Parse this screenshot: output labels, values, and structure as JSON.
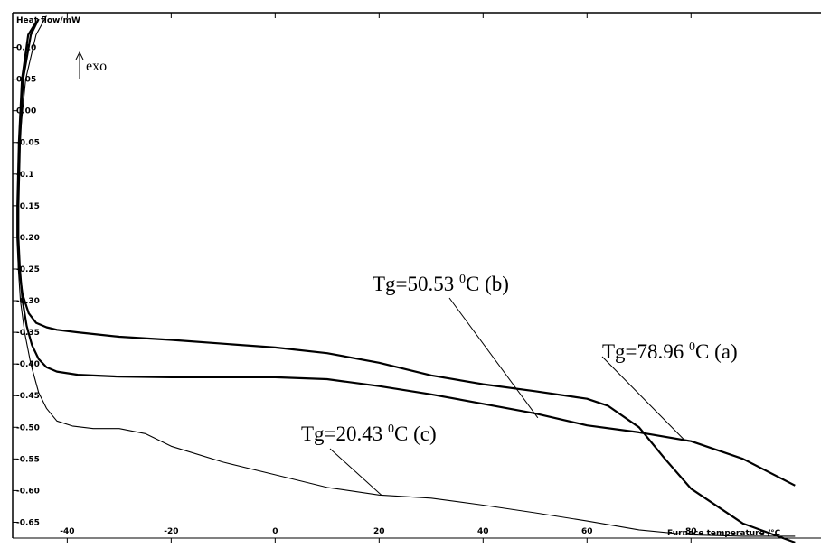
{
  "chart_data": {
    "type": "line",
    "ylabel": "Heat flow/mW",
    "xlabel": "Furnace temperature /°C",
    "xlim": [
      -50.5,
      105
    ],
    "ylim": [
      -0.675,
      0.155
    ],
    "x_ticks": [
      -40,
      -20,
      0,
      20,
      40,
      60,
      80
    ],
    "x_tick_labels": [
      "-40",
      "-20",
      "0",
      "20",
      "40",
      "60",
      "80"
    ],
    "y_ticks": [
      0.1,
      0.05,
      0.0,
      -0.05,
      -0.1,
      -0.15,
      -0.2,
      -0.25,
      -0.3,
      -0.35,
      -0.4,
      -0.45,
      -0.5,
      -0.55,
      -0.6,
      -0.65
    ],
    "y_tick_labels": [
      "0.10",
      "0.05",
      "0.00",
      "-0.05",
      "-0.1",
      "-0.15",
      "-0.20",
      "-0.25",
      "-0.30",
      "-0.35",
      "-0.40",
      "-0.45",
      "-0.50",
      "-0.55",
      "-0.60",
      "-0.65"
    ],
    "exo_label": "exo",
    "series": [
      {
        "key": "b",
        "x": [
          -46,
          -47.5,
          -48.7,
          -49.3,
          -49.6,
          -49.6,
          -49.3,
          -48.6,
          -47.4,
          -46,
          -44,
          -42,
          -38,
          -30,
          -20,
          -10,
          0,
          10,
          20,
          30,
          40,
          50,
          60,
          64,
          70,
          75,
          80,
          90,
          100
        ],
        "y": [
          0.14,
          0.12,
          0.05,
          -0.05,
          -0.15,
          -0.2,
          -0.25,
          -0.29,
          -0.32,
          -0.335,
          -0.342,
          -0.346,
          -0.35,
          -0.357,
          -0.362,
          -0.368,
          -0.374,
          -0.383,
          -0.398,
          -0.418,
          -0.432,
          -0.443,
          -0.455,
          -0.466,
          -0.5,
          -0.55,
          -0.597,
          -0.652,
          -0.682
        ]
      },
      {
        "key": "a",
        "x": [
          -45.5,
          -47,
          -48.5,
          -49.1,
          -49.4,
          -49.4,
          -49.1,
          -48.6,
          -47.8,
          -46.8,
          -45.5,
          -44,
          -42,
          -38,
          -30,
          -20,
          -10,
          0,
          10,
          20,
          30,
          40,
          50,
          60,
          70,
          80,
          90,
          100
        ],
        "y": [
          0.145,
          0.12,
          0.05,
          -0.05,
          -0.15,
          -0.2,
          -0.25,
          -0.3,
          -0.34,
          -0.37,
          -0.392,
          -0.405,
          -0.412,
          -0.417,
          -0.42,
          -0.421,
          -0.421,
          -0.421,
          -0.424,
          -0.435,
          -0.448,
          -0.463,
          -0.478,
          -0.497,
          -0.508,
          -0.522,
          -0.55,
          -0.592
        ]
      },
      {
        "key": "c",
        "x": [
          -44,
          -46,
          -48,
          -49.2,
          -49.6,
          -49.6,
          -49.4,
          -49,
          -48.2,
          -47,
          -45.5,
          -44,
          -42,
          -39,
          -35,
          -30,
          -25,
          -20,
          -10,
          0,
          10,
          20,
          30,
          40,
          50,
          60,
          70,
          80,
          90,
          100
        ],
        "y": [
          0.15,
          0.12,
          0.05,
          -0.05,
          -0.15,
          -0.2,
          -0.25,
          -0.3,
          -0.35,
          -0.4,
          -0.445,
          -0.47,
          -0.49,
          -0.498,
          -0.502,
          -0.502,
          -0.51,
          -0.53,
          -0.555,
          -0.575,
          -0.595,
          -0.607,
          -0.612,
          -0.623,
          -0.635,
          -0.648,
          -0.662,
          -0.67,
          -0.672,
          -0.672
        ]
      }
    ],
    "annotations": [
      {
        "key": "b",
        "label": "Tg=50.53",
        "sup": "0",
        "unit": "C (b)",
        "x": 50.53,
        "y": -0.485
      },
      {
        "key": "a",
        "label": "Tg=78.96",
        "sup": "0",
        "unit": "C (a)",
        "x": 78.96,
        "y": -0.522
      },
      {
        "key": "c",
        "label": "Tg=20.43",
        "sup": "0",
        "unit": "C (c)",
        "x": 20.43,
        "y": -0.607
      }
    ]
  }
}
